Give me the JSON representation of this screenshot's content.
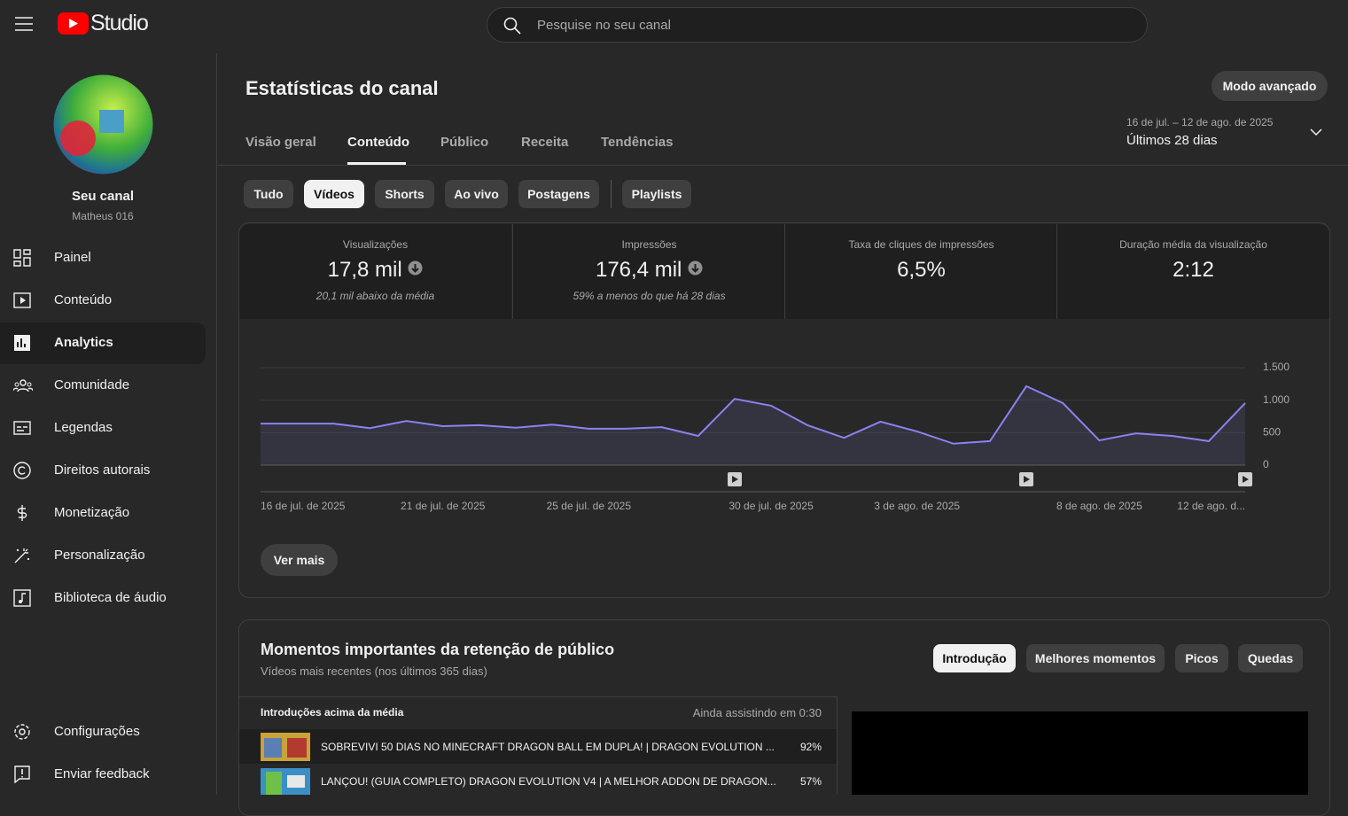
{
  "header": {
    "logo": "Studio",
    "search_placeholder": "Pesquise no seu canal"
  },
  "sidebar": {
    "channel_name": "Seu canal",
    "channel_handle": "Matheus 016",
    "nav": [
      "Painel",
      "Conteúdo",
      "Analytics",
      "Comunidade",
      "Legendas",
      "Direitos autorais",
      "Monetização",
      "Personalização",
      "Biblioteca de áudio"
    ],
    "bottom_nav": [
      "Configurações",
      "Enviar feedback"
    ]
  },
  "main": {
    "title": "Estatísticas do canal",
    "advanced_button": "Modo avançado",
    "tabs": [
      "Visão geral",
      "Conteúdo",
      "Público",
      "Receita",
      "Tendências"
    ],
    "date_range": "16 de jul. – 12 de ago. de 2025",
    "period": "Últimos 28 dias",
    "filters": [
      "Tudo",
      "Vídeos",
      "Shorts",
      "Ao vivo",
      "Postagens",
      "Playlists"
    ],
    "metrics": [
      {
        "label": "Visualizações",
        "value": "17,8 mil",
        "note": "20,1 mil abaixo da média"
      },
      {
        "label": "Impressões",
        "value": "176,4 mil",
        "note": "59% a menos do que há 28 dias"
      },
      {
        "label": "Taxa de cliques de impressões",
        "value": "6,5%"
      },
      {
        "label": "Duração média da visualização",
        "value": "2:12"
      }
    ],
    "more_button": "Ver mais"
  },
  "chart_data": {
    "type": "line",
    "color": "#8a82ee",
    "categories": [
      "16 de jul. de 2025",
      null,
      null,
      null,
      null,
      "21 de jul. de 2025",
      null,
      null,
      null,
      "25 de jul. de 2025",
      null,
      null,
      null,
      null,
      "30 de jul. de 2025",
      null,
      null,
      null,
      "3 de ago. de 2025",
      null,
      null,
      null,
      null,
      "8 de ago. de 2025",
      null,
      null,
      null,
      "12 de ago. d..."
    ],
    "values": [
      640,
      640,
      640,
      570,
      680,
      600,
      615,
      575,
      625,
      560,
      560,
      585,
      450,
      1020,
      915,
      615,
      420,
      670,
      520,
      330,
      370,
      1215,
      955,
      380,
      490,
      450,
      370,
      955
    ],
    "ylim": [
      0,
      1500
    ],
    "yticks": [
      0,
      500,
      {
        "value": 1000,
        "label": "1.000"
      },
      {
        "value": 1500,
        "label": "1.500"
      }
    ],
    "grid": true
  },
  "retention": {
    "title": "Momentos importantes da retenção de público",
    "subtitle": "Vídeos mais recentes (nos últimos 365 dias)",
    "buttons": [
      "Introdução",
      "Melhores momentos",
      "Picos",
      "Quedas"
    ],
    "list_title": "Introduções acima da média",
    "list_note": "Ainda assistindo em 0:30",
    "rows": [
      {
        "title": "SOBREVIVI 50 DIAS NO MINECRAFT DRAGON BALL EM DUPLA! | DRAGON EVOLUTION ...",
        "percent": "92%"
      },
      {
        "title": "LANÇOU! (GUIA COMPLETO) DRAGON EVOLUTION V4 | A MELHOR ADDON DE DRAGON...",
        "percent": "57%"
      }
    ]
  }
}
